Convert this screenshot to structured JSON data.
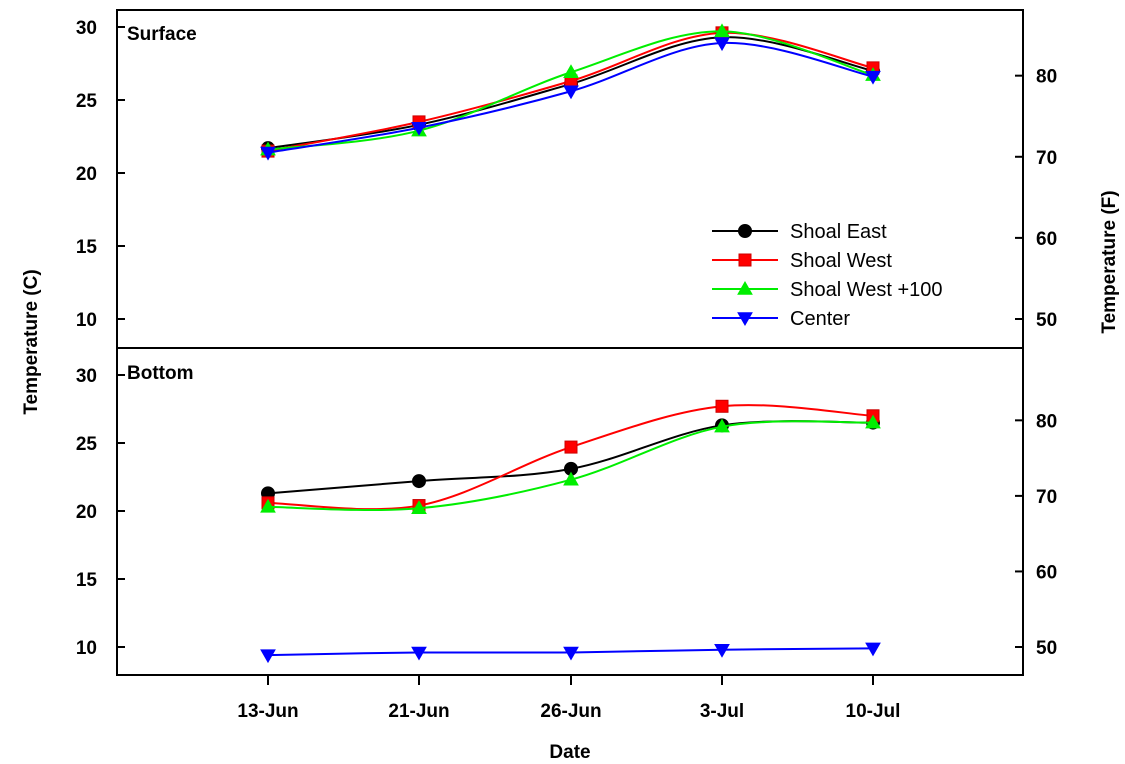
{
  "chart_data": {
    "type": "line",
    "categories": [
      "13-Jun",
      "21-Jun",
      "26-Jun",
      "3-Jul",
      "10-Jul"
    ],
    "xlabel": "Date",
    "ylabel_left": "Temperature (C)",
    "ylabel_right": "Temperature (F)",
    "legend_position": "bottom-right of top panel",
    "grid": false,
    "panels": [
      {
        "title": "Surface",
        "ylim_c": [
          8.4,
          31
        ],
        "yticks_c": [
          10,
          15,
          20,
          25,
          30
        ],
        "yticks_f": [
          50,
          60,
          70,
          80
        ],
        "series": [
          {
            "name": "Shoal East",
            "color": "#000000",
            "marker": "circle",
            "values": [
              21.7,
              23.3,
              26.1,
              29.3,
              27.0
            ]
          },
          {
            "name": "Shoal West",
            "color": "#ff0000",
            "marker": "square",
            "values": [
              21.5,
              23.5,
              26.3,
              29.6,
              27.2
            ]
          },
          {
            "name": "Shoal West +100",
            "color": "#00ee00",
            "marker": "triangle-up",
            "values": [
              21.6,
              22.9,
              26.9,
              29.7,
              26.7
            ]
          },
          {
            "name": "Center",
            "color": "#0000ff",
            "marker": "triangle-down",
            "values": [
              21.4,
              23.1,
              25.6,
              28.9,
              26.6
            ]
          }
        ]
      },
      {
        "title": "Bottom",
        "ylim_c": [
          8.4,
          31
        ],
        "yticks_c": [
          10,
          15,
          20,
          25,
          30
        ],
        "yticks_f": [
          50,
          60,
          70,
          80
        ],
        "series": [
          {
            "name": "Shoal East",
            "color": "#000000",
            "marker": "circle",
            "values": [
              21.3,
              22.2,
              23.1,
              26.3,
              26.5
            ]
          },
          {
            "name": "Shoal West",
            "color": "#ff0000",
            "marker": "square",
            "values": [
              20.6,
              20.4,
              24.7,
              27.7,
              27.0
            ]
          },
          {
            "name": "Shoal West +100",
            "color": "#00ee00",
            "marker": "triangle-up",
            "values": [
              20.3,
              20.2,
              22.3,
              26.2,
              26.5
            ]
          },
          {
            "name": "Center",
            "color": "#0000ff",
            "marker": "triangle-down",
            "values": [
              9.4,
              9.6,
              9.6,
              9.8,
              9.9
            ]
          }
        ]
      }
    ]
  }
}
